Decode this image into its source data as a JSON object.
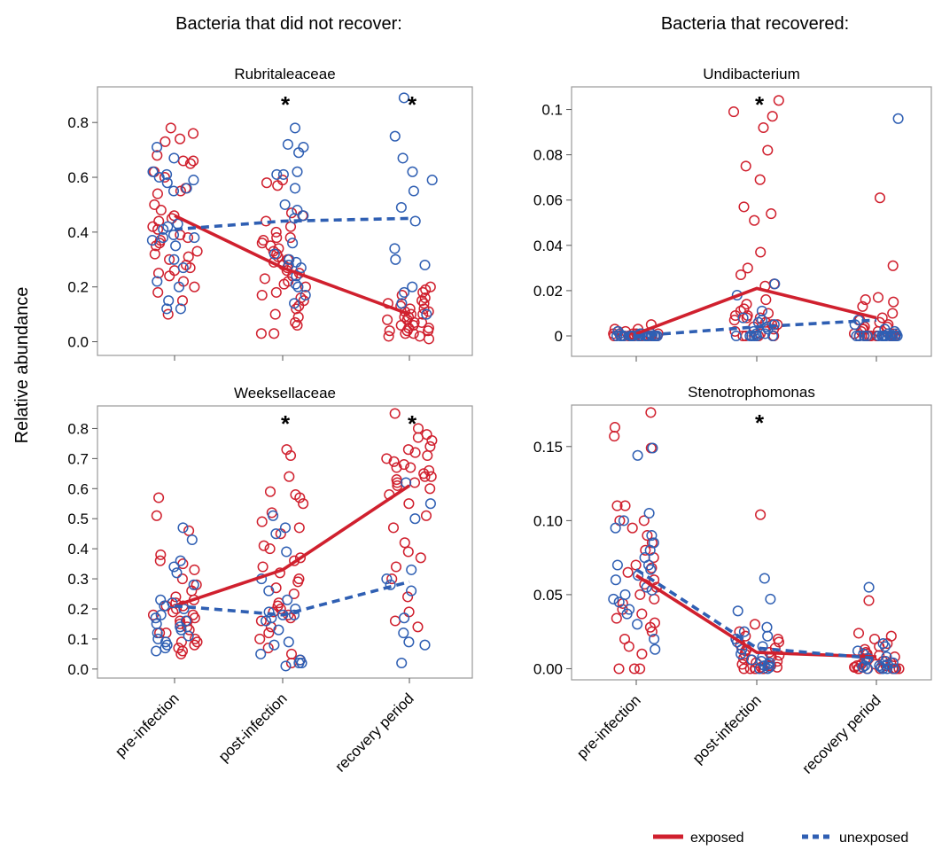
{
  "figure": {
    "left_heading": "Bacteria that did not recover:",
    "right_heading": "Bacteria that recovered:",
    "ylabel": "Relative abundance",
    "legend": {
      "exposed": "exposed",
      "unexposed": "unexposed"
    },
    "colors": {
      "exposed": "#d0202e",
      "unexposed": "#2f5fb3"
    }
  },
  "chart_data": [
    {
      "type": "scatter",
      "title": "Rubritaleaceae",
      "categories": [
        "pre-infection",
        "post-infection",
        "recovery period"
      ],
      "ylim": [
        -0.05,
        0.93
      ],
      "yticks": [
        0.0,
        0.2,
        0.4,
        0.6,
        0.8
      ],
      "ytick_labels": [
        "0.0",
        "0.2",
        "0.4",
        "0.6",
        "0.8"
      ],
      "significant": [
        false,
        true,
        true
      ],
      "series": [
        {
          "name": "exposed",
          "line": [
            0.46,
            0.27,
            0.1
          ],
          "points": [
            [
              0.78,
              0.73,
              0.76,
              0.74,
              0.66,
              0.66,
              0.68,
              0.65,
              0.62,
              0.6,
              0.56,
              0.55,
              0.54,
              0.5,
              0.48,
              0.46,
              0.45,
              0.44,
              0.42,
              0.41,
              0.39,
              0.38,
              0.37,
              0.36,
              0.35,
              0.33,
              0.32,
              0.31,
              0.3,
              0.28,
              0.27,
              0.26,
              0.25,
              0.24,
              0.22,
              0.2,
              0.18,
              0.15,
              0.1
            ],
            [
              0.59,
              0.58,
              0.57,
              0.47,
              0.46,
              0.44,
              0.42,
              0.4,
              0.38,
              0.38,
              0.37,
              0.36,
              0.35,
              0.34,
              0.33,
              0.32,
              0.31,
              0.3,
              0.29,
              0.28,
              0.27,
              0.26,
              0.25,
              0.24,
              0.23,
              0.22,
              0.21,
              0.2,
              0.18,
              0.17,
              0.16,
              0.15,
              0.13,
              0.12,
              0.1,
              0.09,
              0.07,
              0.06,
              0.03,
              0.03
            ],
            [
              0.2,
              0.19,
              0.18,
              0.17,
              0.16,
              0.15,
              0.14,
              0.14,
              0.13,
              0.12,
              0.12,
              0.11,
              0.11,
              0.1,
              0.1,
              0.09,
              0.09,
              0.08,
              0.08,
              0.07,
              0.07,
              0.06,
              0.06,
              0.05,
              0.05,
              0.04,
              0.04,
              0.04,
              0.03,
              0.03,
              0.02,
              0.02,
              0.01
            ]
          ]
        },
        {
          "name": "unexposed",
          "line": [
            0.41,
            0.44,
            0.45
          ],
          "points": [
            [
              0.71,
              0.67,
              0.62,
              0.61,
              0.6,
              0.59,
              0.58,
              0.56,
              0.55,
              0.43,
              0.42,
              0.41,
              0.39,
              0.38,
              0.38,
              0.37,
              0.35,
              0.3,
              0.27,
              0.22,
              0.2,
              0.15,
              0.12,
              0.12
            ],
            [
              0.78,
              0.72,
              0.71,
              0.69,
              0.62,
              0.61,
              0.61,
              0.56,
              0.5,
              0.48,
              0.46,
              0.45,
              0.36,
              0.32,
              0.3,
              0.29,
              0.28,
              0.27,
              0.24,
              0.21,
              0.2,
              0.17,
              0.14
            ],
            [
              0.89,
              0.75,
              0.67,
              0.62,
              0.59,
              0.55,
              0.49,
              0.44,
              0.34,
              0.3,
              0.28,
              0.2,
              0.18,
              0.14,
              0.1
            ]
          ]
        }
      ]
    },
    {
      "type": "scatter",
      "title": "Undibacterium",
      "categories": [
        "pre-infection",
        "post-infection",
        "recovery period"
      ],
      "ylim": [
        -0.009,
        0.11
      ],
      "yticks": [
        0,
        0.02,
        0.04,
        0.06,
        0.08,
        0.1
      ],
      "ytick_labels": [
        "0",
        "0.02",
        "0.04",
        "0.06",
        "0.08",
        "0.1"
      ],
      "significant": [
        false,
        true,
        false
      ],
      "series": [
        {
          "name": "exposed",
          "line": [
            0.001,
            0.021,
            0.008
          ],
          "points": [
            [
              0.005,
              0.003,
              0.003,
              0.002,
              0.002,
              0.001,
              0.001,
              0.001,
              0.001,
              0.0,
              0.0,
              0.0,
              0.0,
              0.0,
              0.0,
              0.0,
              0.0,
              0.0,
              0.0,
              0.0,
              0.0,
              0.0
            ],
            [
              0.104,
              0.099,
              0.097,
              0.092,
              0.082,
              0.075,
              0.069,
              0.057,
              0.054,
              0.051,
              0.037,
              0.03,
              0.027,
              0.023,
              0.022,
              0.016,
              0.014,
              0.012,
              0.011,
              0.01,
              0.009,
              0.009,
              0.008,
              0.008,
              0.007,
              0.006,
              0.005,
              0.005,
              0.004,
              0.003,
              0.002,
              0.001,
              0.0,
              0.0,
              0.0,
              0.0,
              0.0,
              0.0
            ],
            [
              0.061,
              0.031,
              0.017,
              0.016,
              0.015,
              0.013,
              0.01,
              0.008,
              0.007,
              0.006,
              0.005,
              0.004,
              0.004,
              0.003,
              0.003,
              0.002,
              0.002,
              0.001,
              0.001,
              0.0,
              0.0,
              0.0,
              0.0,
              0.0,
              0.0,
              0.0,
              0.0,
              0.0,
              0.0,
              0.0
            ]
          ]
        },
        {
          "name": "unexposed",
          "line": [
            0.0,
            0.004,
            0.007
          ],
          "points": [
            [
              0.002,
              0.001,
              0.001,
              0.001,
              0.001,
              0.0,
              0.0,
              0.0,
              0.0,
              0.0,
              0.0,
              0.0,
              0.0,
              0.0,
              0.0,
              0.0,
              0.0,
              0.0,
              0.0,
              0.0,
              0.0,
              0.0,
              0.0,
              0.0
            ],
            [
              0.023,
              0.018,
              0.011,
              0.008,
              0.007,
              0.006,
              0.005,
              0.004,
              0.003,
              0.002,
              0.001,
              0.001,
              0.0,
              0.0,
              0.0,
              0.0,
              0.0,
              0.0
            ],
            [
              0.096,
              0.007,
              0.005,
              0.003,
              0.002,
              0.001,
              0.001,
              0.0,
              0.0,
              0.0,
              0.0,
              0.0,
              0.0,
              0.0,
              0.0,
              0.0,
              0.0,
              0.0,
              0.0,
              0.0,
              0.0
            ]
          ]
        }
      ]
    },
    {
      "type": "scatter",
      "title": "Weeksellaceae",
      "categories": [
        "pre-infection",
        "post-infection",
        "recovery period"
      ],
      "ylim": [
        -0.03,
        0.875
      ],
      "yticks": [
        0.0,
        0.1,
        0.2,
        0.3,
        0.4,
        0.5,
        0.6,
        0.7,
        0.8
      ],
      "ytick_labels": [
        "0.0",
        "0.1",
        "0.2",
        "0.3",
        "0.4",
        "0.5",
        "0.6",
        "0.7",
        "0.8"
      ],
      "significant": [
        false,
        true,
        true
      ],
      "series": [
        {
          "name": "exposed",
          "line": [
            0.21,
            0.33,
            0.61
          ],
          "points": [
            [
              0.57,
              0.51,
              0.46,
              0.38,
              0.36,
              0.35,
              0.33,
              0.3,
              0.28,
              0.26,
              0.24,
              0.23,
              0.22,
              0.21,
              0.21,
              0.2,
              0.19,
              0.18,
              0.18,
              0.17,
              0.16,
              0.16,
              0.15,
              0.14,
              0.13,
              0.12,
              0.12,
              0.1,
              0.09,
              0.09,
              0.08,
              0.07,
              0.06,
              0.05
            ],
            [
              0.73,
              0.71,
              0.64,
              0.59,
              0.58,
              0.57,
              0.55,
              0.52,
              0.49,
              0.47,
              0.45,
              0.41,
              0.4,
              0.37,
              0.36,
              0.34,
              0.32,
              0.3,
              0.29,
              0.27,
              0.25,
              0.22,
              0.21,
              0.2,
              0.19,
              0.18,
              0.17,
              0.16,
              0.14,
              0.12,
              0.1,
              0.07,
              0.05,
              0.03,
              0.02
            ],
            [
              0.85,
              0.8,
              0.78,
              0.77,
              0.76,
              0.74,
              0.73,
              0.72,
              0.71,
              0.7,
              0.69,
              0.68,
              0.67,
              0.67,
              0.66,
              0.65,
              0.64,
              0.64,
              0.63,
              0.62,
              0.62,
              0.61,
              0.6,
              0.58,
              0.55,
              0.51,
              0.47,
              0.42,
              0.39,
              0.37,
              0.34,
              0.3,
              0.24,
              0.19,
              0.16,
              0.14
            ]
          ]
        },
        {
          "name": "unexposed",
          "line": [
            0.21,
            0.18,
            0.29
          ],
          "points": [
            [
              0.47,
              0.43,
              0.36,
              0.34,
              0.32,
              0.28,
              0.23,
              0.22,
              0.21,
              0.2,
              0.18,
              0.17,
              0.16,
              0.15,
              0.14,
              0.13,
              0.12,
              0.11,
              0.1,
              0.09,
              0.08,
              0.07,
              0.06
            ],
            [
              0.51,
              0.47,
              0.45,
              0.39,
              0.3,
              0.26,
              0.23,
              0.2,
              0.19,
              0.18,
              0.18,
              0.17,
              0.16,
              0.13,
              0.09,
              0.08,
              0.05,
              0.03,
              0.02,
              0.02,
              0.01
            ],
            [
              0.62,
              0.55,
              0.5,
              0.33,
              0.3,
              0.28,
              0.26,
              0.17,
              0.12,
              0.09,
              0.08,
              0.02
            ]
          ]
        }
      ]
    },
    {
      "type": "scatter",
      "title": "Stenotrophomonas",
      "categories": [
        "pre-infection",
        "post-infection",
        "recovery period"
      ],
      "ylim": [
        -0.0075,
        0.178
      ],
      "yticks": [
        0.0,
        0.05,
        0.1,
        0.15
      ],
      "ytick_labels": [
        "0.00",
        "0.05",
        "0.10",
        "0.15"
      ],
      "significant": [
        false,
        true,
        false
      ],
      "series": [
        {
          "name": "exposed",
          "line": [
            0.063,
            0.011,
            0.008
          ],
          "points": [
            [
              0.173,
              0.163,
              0.157,
              0.149,
              0.11,
              0.11,
              0.1,
              0.1,
              0.095,
              0.09,
              0.085,
              0.08,
              0.075,
              0.07,
              0.068,
              0.065,
              0.06,
              0.057,
              0.055,
              0.05,
              0.047,
              0.044,
              0.04,
              0.037,
              0.034,
              0.031,
              0.028,
              0.025,
              0.02,
              0.015,
              0.01,
              0.0,
              0.0,
              0.0
            ],
            [
              0.104,
              0.03,
              0.025,
              0.022,
              0.02,
              0.018,
              0.016,
              0.014,
              0.013,
              0.012,
              0.011,
              0.01,
              0.009,
              0.008,
              0.007,
              0.006,
              0.005,
              0.004,
              0.003,
              0.002,
              0.002,
              0.001,
              0.001,
              0.0,
              0.0,
              0.0,
              0.0,
              0.0,
              0.0
            ],
            [
              0.046,
              0.024,
              0.022,
              0.02,
              0.017,
              0.015,
              0.013,
              0.011,
              0.01,
              0.009,
              0.008,
              0.007,
              0.006,
              0.005,
              0.004,
              0.003,
              0.003,
              0.002,
              0.002,
              0.001,
              0.001,
              0.0,
              0.0,
              0.0,
              0.0,
              0.0,
              0.0,
              0.0,
              0.0
            ]
          ]
        },
        {
          "name": "unexposed",
          "line": [
            0.067,
            0.014,
            0.007
          ],
          "points": [
            [
              0.149,
              0.144,
              0.105,
              0.1,
              0.095,
              0.09,
              0.085,
              0.08,
              0.075,
              0.07,
              0.07,
              0.067,
              0.063,
              0.06,
              0.055,
              0.053,
              0.05,
              0.047,
              0.045,
              0.04,
              0.037,
              0.03,
              0.02,
              0.013
            ],
            [
              0.061,
              0.047,
              0.039,
              0.028,
              0.025,
              0.022,
              0.02,
              0.018,
              0.015,
              0.013,
              0.01,
              0.008,
              0.006,
              0.005,
              0.004,
              0.003,
              0.002,
              0.001,
              0.0,
              0.0
            ],
            [
              0.055,
              0.017,
              0.015,
              0.012,
              0.01,
              0.008,
              0.007,
              0.006,
              0.005,
              0.004,
              0.003,
              0.002,
              0.002,
              0.001,
              0.001,
              0.0,
              0.0,
              0.0,
              0.0
            ]
          ]
        }
      ]
    }
  ]
}
